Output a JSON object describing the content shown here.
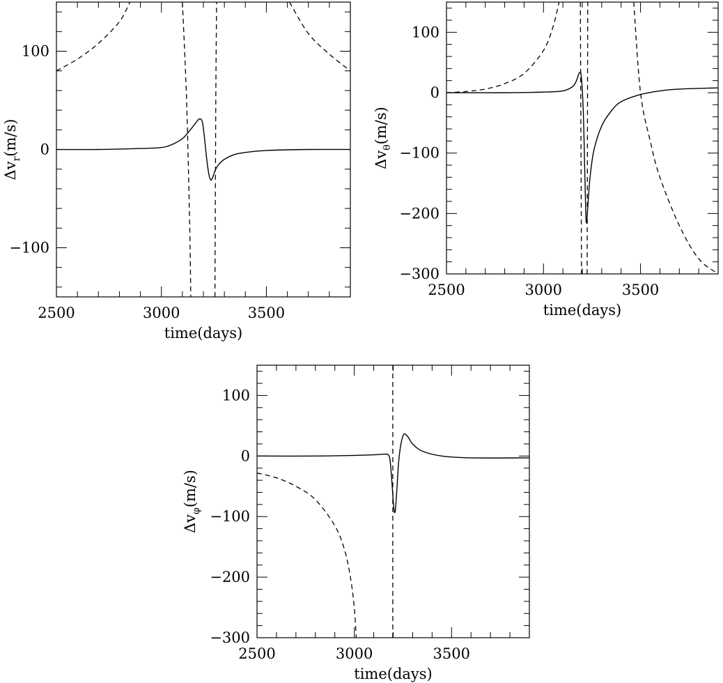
{
  "chart_data": [
    {
      "type": "line",
      "id": "vr",
      "xlabel": "time(days)",
      "ylabel": {
        "main": "Δv",
        "sub": "r",
        "unit": "(m/s)"
      },
      "xlim": [
        2500,
        3900
      ],
      "ylim": [
        -150,
        150
      ],
      "xticks": [
        2500,
        3000,
        3500
      ],
      "yticks": [
        -100,
        0,
        100
      ],
      "xtick_labels": [
        "2500",
        "3000",
        "3500"
      ],
      "ytick_labels": [
        "−100",
        "0",
        "100"
      ],
      "series": [
        {
          "style": "solid",
          "x": [
            2500,
            2700,
            2900,
            3000,
            3050,
            3100,
            3130,
            3160,
            3180,
            3195,
            3205,
            3215,
            3225,
            3235,
            3245,
            3255,
            3270,
            3300,
            3350,
            3400,
            3500,
            3700,
            3900
          ],
          "y": [
            0,
            0,
            1,
            2,
            5,
            11,
            18,
            26,
            31,
            28,
            12,
            -8,
            -24,
            -31,
            -28,
            -22,
            -16,
            -10,
            -5,
            -3,
            -1,
            0,
            0
          ]
        },
        {
          "style": "dashed",
          "x": [
            2500,
            2600,
            2700,
            2800,
            2850
          ],
          "y": [
            80,
            92,
            108,
            130,
            150
          ]
        },
        {
          "style": "dashed",
          "x": [
            3100,
            3120,
            3135,
            3140
          ],
          "y": [
            150,
            50,
            -80,
            -150
          ]
        },
        {
          "style": "dashed",
          "x": [
            3255,
            3258,
            3260,
            3263
          ],
          "y": [
            -150,
            0,
            80,
            150
          ]
        },
        {
          "style": "dashed",
          "x": [
            3610,
            3700,
            3800,
            3900
          ],
          "y": [
            150,
            118,
            97,
            80
          ]
        }
      ]
    },
    {
      "type": "line",
      "id": "vtheta",
      "xlabel": "time(days)",
      "ylabel": {
        "main": "Δv",
        "sub": "θ",
        "unit": "(m/s)"
      },
      "xlim": [
        2500,
        3900
      ],
      "ylim": [
        -300,
        150
      ],
      "xticks": [
        2500,
        3000,
        3500
      ],
      "yticks": [
        -300,
        -200,
        -100,
        0,
        100
      ],
      "xtick_labels": [
        "2500",
        "3000",
        "3500"
      ],
      "ytick_labels": [
        "−300",
        "−200",
        "−100",
        "0",
        "100"
      ],
      "series": [
        {
          "style": "solid",
          "x": [
            2500,
            2800,
            3000,
            3100,
            3150,
            3170,
            3185,
            3195,
            3205,
            3212,
            3218,
            3222,
            3228,
            3240,
            3260,
            3300,
            3350,
            3400,
            3500,
            3600,
            3700,
            3900
          ],
          "y": [
            0,
            0,
            1,
            3,
            10,
            20,
            33,
            26,
            -30,
            -120,
            -200,
            -215,
            -190,
            -140,
            -95,
            -55,
            -30,
            -15,
            -3,
            3,
            6,
            8
          ]
        },
        {
          "style": "dashed",
          "x": [
            2500,
            2600,
            2700,
            2800,
            2900,
            3000,
            3050,
            3080
          ],
          "y": [
            0,
            2,
            6,
            15,
            32,
            70,
            110,
            150
          ]
        },
        {
          "style": "dashed",
          "x": [
            3190,
            3192,
            3194,
            3196
          ],
          "y": [
            150,
            0,
            -150,
            -300
          ]
        },
        {
          "style": "dashed",
          "x": [
            3225,
            3226,
            3227,
            3228
          ],
          "y": [
            -300,
            -150,
            0,
            150
          ]
        },
        {
          "style": "dashed",
          "x": [
            3465,
            3500,
            3550,
            3600,
            3700,
            3800,
            3900
          ],
          "y": [
            150,
            0,
            -80,
            -140,
            -220,
            -275,
            -300
          ]
        }
      ]
    },
    {
      "type": "line",
      "id": "vphi",
      "xlabel": "time(days)",
      "ylabel": {
        "main": "Δv",
        "sub": "φ",
        "unit": "(m/s)"
      },
      "xlim": [
        2500,
        3900
      ],
      "ylim": [
        -300,
        150
      ],
      "xticks": [
        2500,
        3000,
        3500
      ],
      "yticks": [
        -300,
        -200,
        -100,
        0,
        100
      ],
      "xtick_labels": [
        "2500",
        "3000",
        "3500"
      ],
      "ytick_labels": [
        "−300",
        "−200",
        "−100",
        "0",
        "100"
      ],
      "series": [
        {
          "style": "solid",
          "x": [
            2500,
            2800,
            3000,
            3100,
            3150,
            3175,
            3185,
            3195,
            3203,
            3210,
            3218,
            3228,
            3240,
            3255,
            3275,
            3300,
            3350,
            3450,
            3600,
            3900
          ],
          "y": [
            0,
            0,
            1,
            2,
            3,
            2,
            -10,
            -50,
            -85,
            -92,
            -60,
            -10,
            20,
            36,
            32,
            20,
            8,
            0,
            -3,
            -3
          ]
        },
        {
          "style": "dashed",
          "x": [
            2500,
            2600,
            2700,
            2800,
            2900,
            2950,
            2980,
            3000,
            3010
          ],
          "y": [
            -28,
            -36,
            -50,
            -72,
            -115,
            -155,
            -200,
            -250,
            -300
          ]
        },
        {
          "style": "dashed",
          "x": [
            3198,
            3198
          ],
          "y": [
            150,
            -300
          ]
        }
      ]
    }
  ]
}
